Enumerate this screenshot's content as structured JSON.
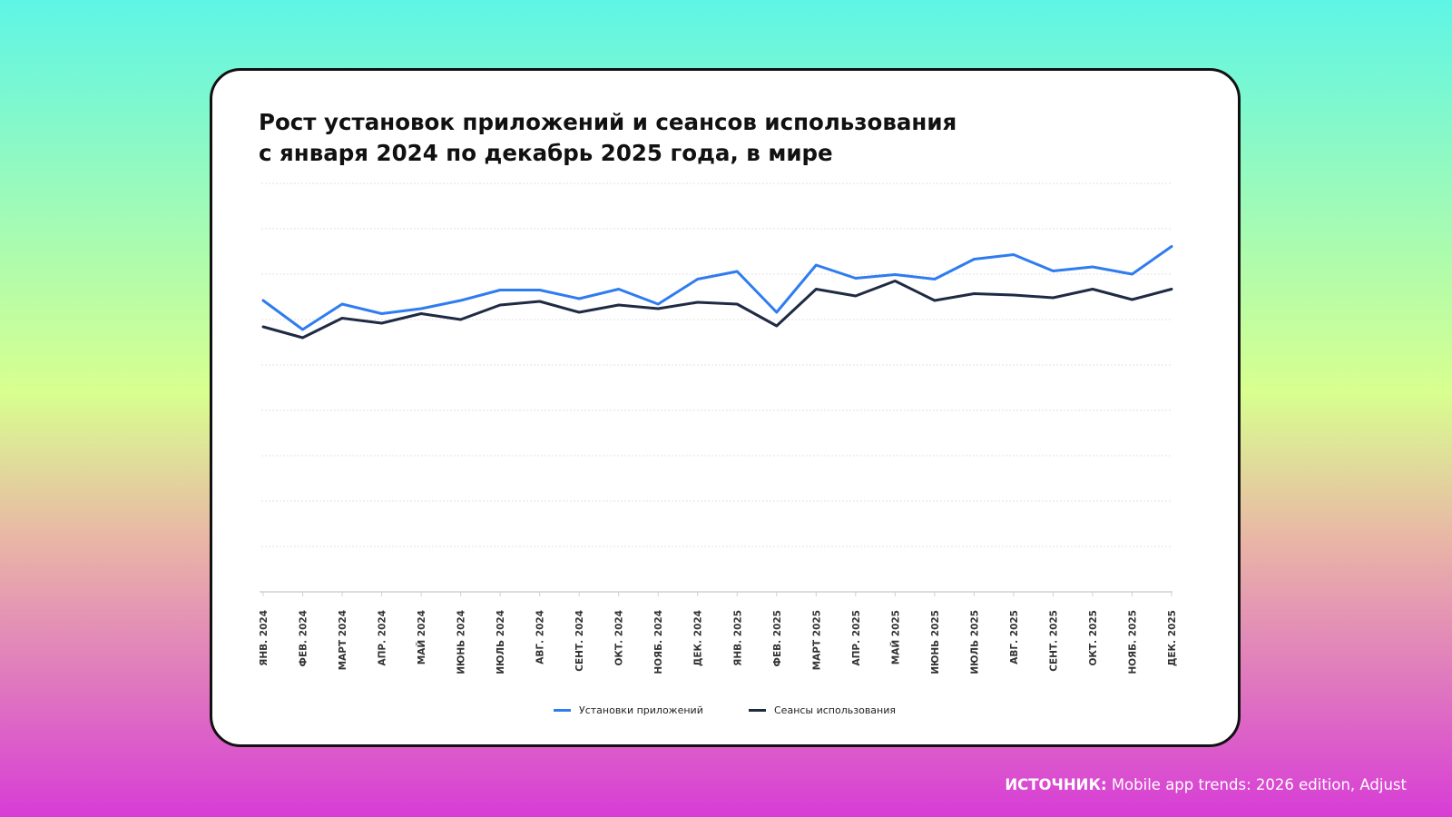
{
  "title_line1": "Рост установок приложений и сеансов использования",
  "title_line2": "с января 2024 по декабрь 2025 года, в мире",
  "source": {
    "label": "ИСТОЧНИК:",
    "text": " Mobile app trends: 2026 edition, Adjust"
  },
  "colors": {
    "installs": "#2f7cf0",
    "sessions": "#1f2a44",
    "grid": "#e2e2e2",
    "axis": "#d0d0d0"
  },
  "chart_data": {
    "type": "line",
    "title": "Рост установок приложений и сеансов использования с января 2024 по декабрь 2025 года, в мире",
    "categories": [
      "ЯНВ. 2024",
      "ФЕВ. 2024",
      "МАРТ 2024",
      "АПР. 2024",
      "МАЙ 2024",
      "ИЮНЬ 2024",
      "ИЮЛЬ 2024",
      "АВГ. 2024",
      "СЕНТ. 2024",
      "ОКТ. 2024",
      "НОЯБ. 2024",
      "ДЕК. 2024",
      "ЯНВ. 2025",
      "ФЕВ. 2025",
      "МАРТ 2025",
      "АПР. 2025",
      "МАЙ 2025",
      "ИЮНЬ 2025",
      "ИЮЛЬ 2025",
      "АВГ. 2025",
      "СЕНТ. 2025",
      "ОКТ. 2025",
      "НОЯБ. 2025",
      "ДЕК. 2025"
    ],
    "series": [
      {
        "name": "Установки приложений",
        "values": [
          6.42,
          5.78,
          6.34,
          6.13,
          6.24,
          6.42,
          6.65,
          6.65,
          6.46,
          6.67,
          6.34,
          6.89,
          7.06,
          6.16,
          7.2,
          6.91,
          6.99,
          6.89,
          7.33,
          7.43,
          7.07,
          7.16,
          7.0,
          7.61
        ],
        "color": "#2f7cf0"
      },
      {
        "name": "Сеансы использования",
        "values": [
          5.84,
          5.6,
          6.03,
          5.92,
          6.13,
          6.0,
          6.32,
          6.4,
          6.16,
          6.32,
          6.24,
          6.38,
          6.34,
          5.86,
          6.67,
          6.52,
          6.85,
          6.42,
          6.57,
          6.54,
          6.48,
          6.67,
          6.44,
          6.67
        ]
      }
    ],
    "ylim": [
      0,
      9
    ],
    "y_ticks_shown": false,
    "grid": true,
    "legend_position": "bottom-center"
  }
}
